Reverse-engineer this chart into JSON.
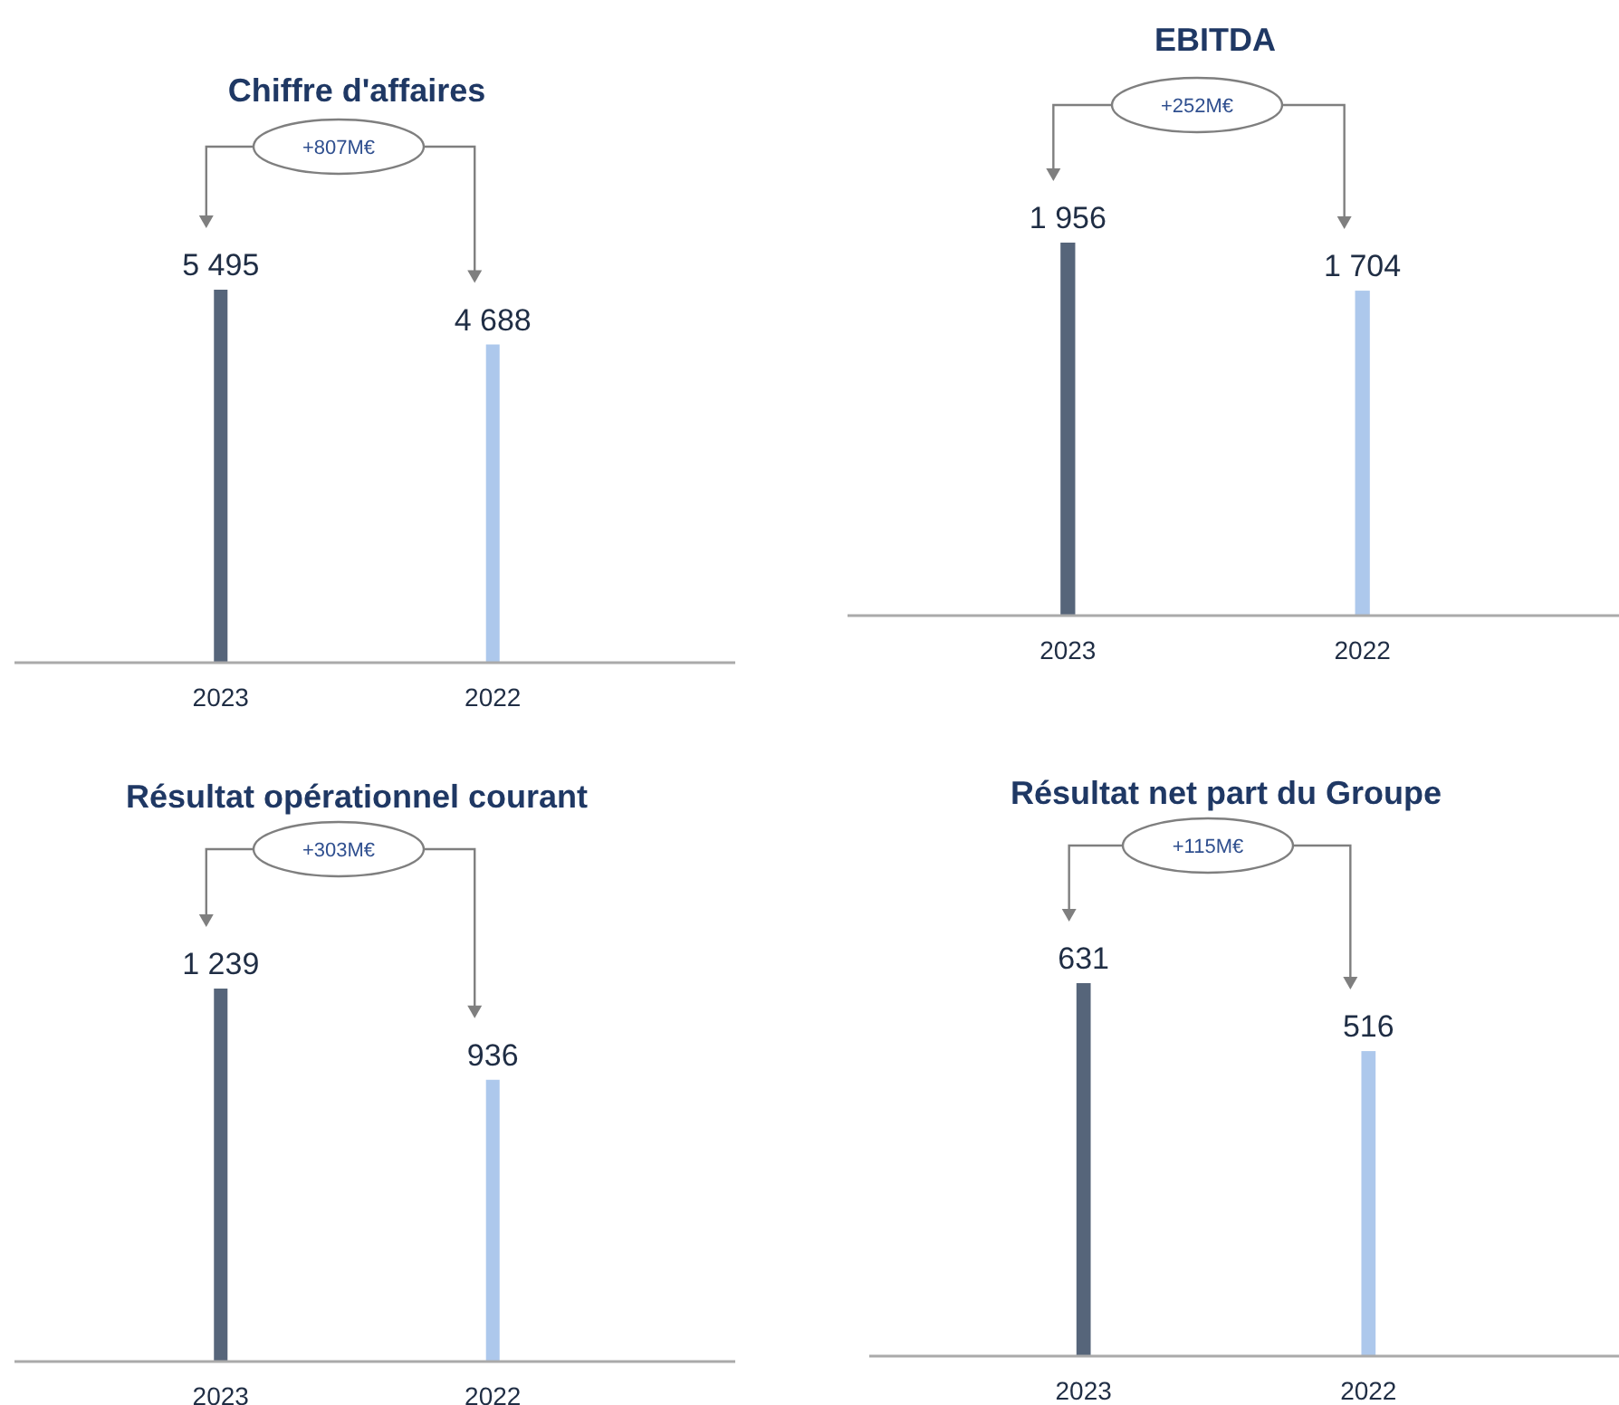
{
  "chart_data": [
    {
      "type": "bar",
      "title": "Chiffre d'affaires",
      "categories": [
        "2023",
        "2022"
      ],
      "values": [
        5495,
        4688
      ],
      "colors": [
        "#56657a",
        "#adc8ec"
      ],
      "value_labels": [
        "5 495",
        "4 688"
      ],
      "annotations": [
        "+807M€"
      ]
    },
    {
      "type": "bar",
      "title": "EBITDA",
      "categories": [
        "2023",
        "2022"
      ],
      "values": [
        1956,
        1704
      ],
      "colors": [
        "#56657a",
        "#adc8ec"
      ],
      "value_labels": [
        "1 956",
        "1 704"
      ],
      "annotations": [
        "+252M€"
      ]
    },
    {
      "type": "bar",
      "title": "Résultat opérationnel courant",
      "categories": [
        "2023",
        "2022"
      ],
      "values": [
        1239,
        936
      ],
      "colors": [
        "#56657a",
        "#adc8ec"
      ],
      "value_labels": [
        "1 239",
        "936"
      ],
      "annotations": [
        "+303M€"
      ]
    },
    {
      "type": "bar",
      "title": "Résultat net part du Groupe",
      "categories": [
        "2023",
        "2022"
      ],
      "values": [
        631,
        516
      ],
      "colors": [
        "#56657a",
        "#adc8ec"
      ],
      "value_labels": [
        "631",
        "516"
      ],
      "annotations": [
        "+115M€"
      ]
    }
  ]
}
